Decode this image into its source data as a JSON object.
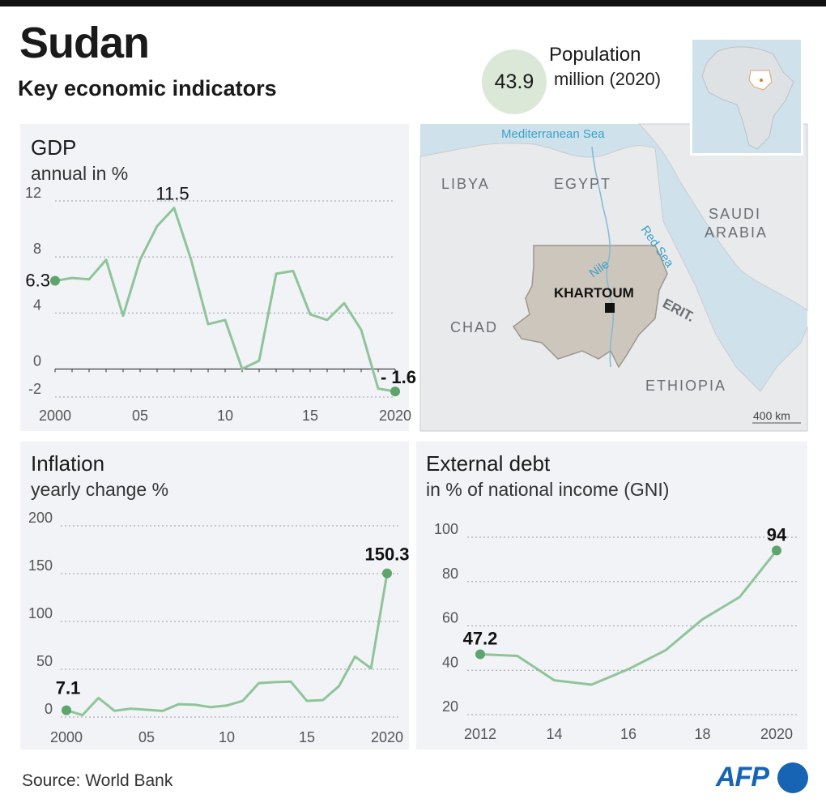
{
  "header": {
    "title": "Sudan",
    "subtitle": "Key economic indicators"
  },
  "population": {
    "value": "43.9",
    "label": "Population",
    "sublabel": "million (2020)"
  },
  "map": {
    "labels": {
      "sea": "Mediterranean Sea",
      "libya": "LIBYA",
      "egypt": "EGYPT",
      "saudi1": "SAUDI",
      "saudi2": "ARABIA",
      "chad": "CHAD",
      "ethiopia": "ETHIOPIA",
      "erit": "ERIT.",
      "nile": "Nile",
      "redsea": "Red Sea",
      "capital": "KHARTOUM",
      "scale": "400 km"
    },
    "colors": {
      "water": "#cfe2ec",
      "land": "#e8eaec",
      "sudan": "#cdc6bd",
      "accent_label": "#3aa0c8"
    }
  },
  "source": "Source:  World Bank",
  "agency": "AFP",
  "colors": {
    "line": "#8fc49a",
    "dot": "#5ea56b",
    "panel": "#f1f3f6"
  },
  "chart_data": [
    {
      "type": "line",
      "title": "GDP",
      "subtitle": "annual in %",
      "x": [
        2000,
        2001,
        2002,
        2003,
        2004,
        2005,
        2006,
        2007,
        2008,
        2009,
        2010,
        2011,
        2012,
        2013,
        2014,
        2015,
        2016,
        2017,
        2018,
        2019,
        2020
      ],
      "values": [
        6.3,
        6.5,
        6.4,
        7.8,
        3.8,
        7.8,
        10.2,
        11.5,
        7.8,
        3.2,
        3.5,
        0.0,
        0.6,
        6.8,
        7.0,
        3.9,
        3.5,
        4.7,
        2.8,
        -1.4,
        -1.6
      ],
      "ylim": [
        -2,
        12
      ],
      "yticks": [
        -2,
        0,
        4,
        8,
        12
      ],
      "xtick_labels": [
        {
          "x": 2000,
          "label": "2000"
        },
        {
          "x": 2005,
          "label": "05"
        },
        {
          "x": 2010,
          "label": "10"
        },
        {
          "x": 2015,
          "label": "15"
        },
        {
          "x": 2020,
          "label": "2020"
        }
      ],
      "annotations": [
        {
          "x": 2000,
          "label": "6.3",
          "dot": true
        },
        {
          "x": 2007,
          "label": "11.5",
          "dot": false
        },
        {
          "x": 2020,
          "label": "- 1.6",
          "dot": true
        }
      ],
      "grid": true
    },
    {
      "type": "line",
      "title": "Inflation",
      "subtitle": "yearly change %",
      "x": [
        2000,
        2001,
        2002,
        2003,
        2004,
        2005,
        2006,
        2007,
        2008,
        2009,
        2010,
        2011,
        2012,
        2013,
        2014,
        2015,
        2016,
        2017,
        2018,
        2019,
        2020
      ],
      "values": [
        7.1,
        2.0,
        20.0,
        6.5,
        8.8,
        7.6,
        6.4,
        13.5,
        13.0,
        10.3,
        12.0,
        17.0,
        35.5,
        36.5,
        37.0,
        16.9,
        17.8,
        32.4,
        63.3,
        51.0,
        150.3
      ],
      "ylim": [
        0,
        200
      ],
      "yticks": [
        0,
        50,
        100,
        150,
        200
      ],
      "xtick_labels": [
        {
          "x": 2000,
          "label": "2000"
        },
        {
          "x": 2005,
          "label": "05"
        },
        {
          "x": 2010,
          "label": "10"
        },
        {
          "x": 2015,
          "label": "15"
        },
        {
          "x": 2020,
          "label": "2020"
        }
      ],
      "annotations": [
        {
          "x": 2000,
          "label": "7.1",
          "dot": true
        },
        {
          "x": 2020,
          "label": "150.3",
          "dot": true
        }
      ],
      "grid": true
    },
    {
      "type": "line",
      "title": "External debt",
      "subtitle": "in % of national income (GNI)",
      "x": [
        2012,
        2013,
        2014,
        2015,
        2016,
        2017,
        2018,
        2019,
        2020
      ],
      "values": [
        47.2,
        46.5,
        35.5,
        33.5,
        40.5,
        49.0,
        63.0,
        73.0,
        94.0
      ],
      "ylim": [
        20,
        100
      ],
      "yticks": [
        20,
        40,
        60,
        80,
        100
      ],
      "xtick_labels": [
        {
          "x": 2012,
          "label": "2012"
        },
        {
          "x": 2014,
          "label": "14"
        },
        {
          "x": 2016,
          "label": "16"
        },
        {
          "x": 2018,
          "label": "18"
        },
        {
          "x": 2020,
          "label": "2020"
        }
      ],
      "annotations": [
        {
          "x": 2012,
          "label": "47.2",
          "dot": true
        },
        {
          "x": 2020,
          "label": "94",
          "dot": true
        }
      ],
      "grid": true
    }
  ]
}
